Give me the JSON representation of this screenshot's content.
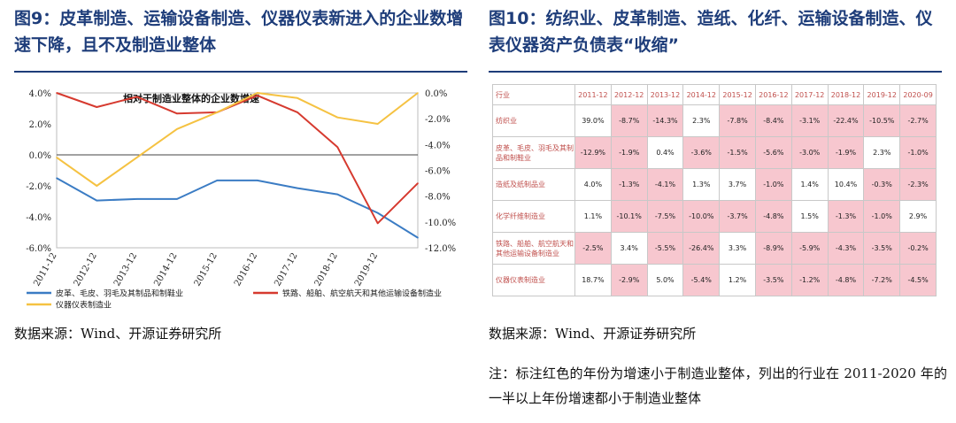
{
  "left_figure": {
    "title": "图9：皮革制造、运输设备制造、仪器仪表新进入的企业数增速下降，且不及制造业整体",
    "source": "数据来源：Wind、开源证券研究所"
  },
  "right_figure": {
    "title": "图10：纺织业、皮革制造、造纸、化纤、运输设备制造、仪表仪器资产负债表“收缩”",
    "source": "数据来源：Wind、开源证券研究所",
    "note": "注：标注红色的年份为增速小于制造业整体，列出的行业在 2011-2020 年的一半以上年份增速都小于制造业整体"
  },
  "colors": {
    "title_blue": "#1e3d7a",
    "series_blue": "#3b7cc4",
    "series_red": "#d63a2f",
    "series_yellow": "#f5c242",
    "highlight_pink": "#f7c7cf",
    "header_red": "#c0504d"
  },
  "chart_data": [
    {
      "type": "line",
      "title": "相对于制造业整体的企业数增速",
      "categories": [
        "2011-12",
        "2012-12",
        "2013-12",
        "2014-12",
        "2015-12",
        "2016-12",
        "2017-12",
        "2018-12",
        "2019-12",
        "2020-09"
      ],
      "x_tick_labels": [
        "2011-12",
        "2012-12",
        "2013-12",
        "2014-12",
        "2015-12",
        "2016-12",
        "2017-12",
        "2018-12",
        "2019-12"
      ],
      "left_axis": {
        "ylim": [
          -6.0,
          4.0
        ],
        "ticks": [
          "4.0%",
          "2.0%",
          "0.0%",
          "-2.0%",
          "-4.0%",
          "-6.0%"
        ]
      },
      "right_axis": {
        "ylim": [
          -12.0,
          0.0
        ],
        "ticks": [
          "0.0%",
          "-2.0%",
          "-4.0%",
          "-6.0%",
          "-8.0%",
          "-10.0%",
          "-12.0%"
        ]
      },
      "legend_position": "bottom",
      "series": [
        {
          "name": "皮革、毛皮、羽毛及其制品和制鞋业",
          "axis": "left",
          "color": "#3b7cc4",
          "values": [
            -1.5,
            -2.95,
            -2.85,
            -2.85,
            -1.65,
            -1.65,
            -2.15,
            -2.55,
            -3.75,
            -5.35
          ]
        },
        {
          "name": "铁路、船舶、航空航天和其他运输设备制造业",
          "axis": "right",
          "color": "#d63a2f",
          "values": [
            0.0,
            -1.1,
            -0.3,
            -1.6,
            -1.5,
            -0.2,
            -1.5,
            -4.2,
            -10.1,
            -7.0
          ]
        },
        {
          "name": "仪器仪表制造业",
          "axis": "right",
          "color": "#f5c242",
          "values": [
            -5.0,
            -7.2,
            -5.0,
            -2.8,
            -1.5,
            0.0,
            -0.4,
            -1.9,
            -2.4,
            0.0
          ]
        }
      ]
    },
    {
      "type": "table",
      "columns": [
        "行业",
        "2011-12",
        "2012-12",
        "2013-12",
        "2014-12",
        "2015-12",
        "2016-12",
        "2017-12",
        "2018-12",
        "2019-12",
        "2020-09"
      ],
      "rows": [
        {
          "label": "纺织业",
          "cells": [
            {
              "v": "39.0%",
              "red": false
            },
            {
              "v": "-8.7%",
              "red": true
            },
            {
              "v": "-14.3%",
              "red": true
            },
            {
              "v": "2.3%",
              "red": false
            },
            {
              "v": "-7.8%",
              "red": true
            },
            {
              "v": "-8.4%",
              "red": true
            },
            {
              "v": "-3.1%",
              "red": true
            },
            {
              "v": "-22.4%",
              "red": true
            },
            {
              "v": "-10.5%",
              "red": true
            },
            {
              "v": "-2.7%",
              "red": true
            }
          ]
        },
        {
          "label": "皮革、毛皮、羽毛及其制品和制鞋业",
          "cells": [
            {
              "v": "-12.9%",
              "red": true
            },
            {
              "v": "-1.9%",
              "red": true
            },
            {
              "v": "0.4%",
              "red": false
            },
            {
              "v": "-3.6%",
              "red": true
            },
            {
              "v": "-1.5%",
              "red": true
            },
            {
              "v": "-5.6%",
              "red": true
            },
            {
              "v": "-3.0%",
              "red": true
            },
            {
              "v": "-1.9%",
              "red": true
            },
            {
              "v": "2.3%",
              "red": false
            },
            {
              "v": "-1.0%",
              "red": true
            }
          ]
        },
        {
          "label": "造纸及纸制品业",
          "cells": [
            {
              "v": "4.0%",
              "red": false
            },
            {
              "v": "-1.3%",
              "red": true
            },
            {
              "v": "-4.1%",
              "red": true
            },
            {
              "v": "1.3%",
              "red": false
            },
            {
              "v": "3.7%",
              "red": false
            },
            {
              "v": "-1.0%",
              "red": true
            },
            {
              "v": "1.4%",
              "red": false
            },
            {
              "v": "10.4%",
              "red": false
            },
            {
              "v": "-0.3%",
              "red": true
            },
            {
              "v": "-2.3%",
              "red": true
            }
          ]
        },
        {
          "label": "化学纤维制造业",
          "cells": [
            {
              "v": "1.1%",
              "red": false
            },
            {
              "v": "-10.1%",
              "red": true
            },
            {
              "v": "-7.5%",
              "red": true
            },
            {
              "v": "-10.0%",
              "red": true
            },
            {
              "v": "-3.7%",
              "red": true
            },
            {
              "v": "-4.8%",
              "red": true
            },
            {
              "v": "1.5%",
              "red": false
            },
            {
              "v": "-1.3%",
              "red": true
            },
            {
              "v": "-1.0%",
              "red": true
            },
            {
              "v": "2.9%",
              "red": false
            }
          ]
        },
        {
          "label": "铁路、船舶、航空航天和其他运输设备制造业",
          "cells": [
            {
              "v": "-2.5%",
              "red": true
            },
            {
              "v": "3.4%",
              "red": false
            },
            {
              "v": "-5.5%",
              "red": true
            },
            {
              "v": "-26.4%",
              "red": true
            },
            {
              "v": "3.3%",
              "red": false
            },
            {
              "v": "-8.9%",
              "red": true
            },
            {
              "v": "-5.9%",
              "red": true
            },
            {
              "v": "-4.3%",
              "red": true
            },
            {
              "v": "-3.5%",
              "red": true
            },
            {
              "v": "-0.2%",
              "red": true
            }
          ]
        },
        {
          "label": "仪器仪表制造业",
          "cells": [
            {
              "v": "18.7%",
              "red": false
            },
            {
              "v": "-2.9%",
              "red": true
            },
            {
              "v": "5.0%",
              "red": false
            },
            {
              "v": "-5.4%",
              "red": true
            },
            {
              "v": "1.2%",
              "red": false
            },
            {
              "v": "-3.5%",
              "red": true
            },
            {
              "v": "-1.2%",
              "red": true
            },
            {
              "v": "-4.8%",
              "red": true
            },
            {
              "v": "-7.2%",
              "red": true
            },
            {
              "v": "-4.5%",
              "red": true
            }
          ]
        }
      ]
    }
  ]
}
